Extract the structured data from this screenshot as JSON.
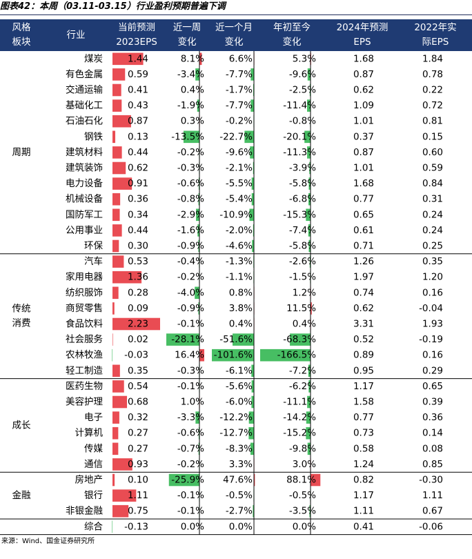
{
  "caption": "图表42：本周（03.11-03.15）行业盈利预期普遍下调",
  "source": "来源：Wind、国金证券研究所",
  "colors": {
    "header_bg": "#1f3b73",
    "header_text": "#ffffff",
    "positive_bar": "#e8424a",
    "negative_bar": "#3dbb5b",
    "divider": "#000000"
  },
  "headers": {
    "sector": [
      "风格",
      "板块"
    ],
    "industry": [
      "行业"
    ],
    "eps2023": [
      "当前预测",
      "2023EPS"
    ],
    "w1": [
      "近一周",
      "变化"
    ],
    "m1": [
      "近一个月",
      "变化"
    ],
    "ytd": [
      "年初至今",
      "变化"
    ],
    "eps2024": [
      "2024年预测",
      "EPS"
    ],
    "eps2022": [
      "2022年实",
      "际EPS"
    ]
  },
  "chart_data": {
    "type": "table",
    "title": "图表42：本周（03.11-03.15）行业盈利预期普遍下调",
    "columns": [
      "风格板块",
      "行业",
      "当前预测2023EPS",
      "近一周变化",
      "近一个月变化",
      "年初至今变化",
      "2024年预测EPS",
      "2022年实际EPS"
    ],
    "groups": [
      {
        "name": "周期",
        "label_lines": [
          "周期"
        ],
        "rows": [
          {
            "industry": "煤炭",
            "eps2023": "1.44",
            "w1": "8.1%",
            "m1": "6.6%",
            "ytd": "5.3%",
            "eps2024": "1.68",
            "eps2022": "1.84"
          },
          {
            "industry": "有色金属",
            "eps2023": "0.59",
            "w1": "-3.4%",
            "m1": "-7.7%",
            "ytd": "-9.6%",
            "eps2024": "0.87",
            "eps2022": "0.78"
          },
          {
            "industry": "交通运输",
            "eps2023": "0.41",
            "w1": "0.4%",
            "m1": "-1.7%",
            "ytd": "-2.5%",
            "eps2024": "0.62",
            "eps2022": "0.22"
          },
          {
            "industry": "基础化工",
            "eps2023": "0.43",
            "w1": "-1.9%",
            "m1": "-7.7%",
            "ytd": "-11.4%",
            "eps2024": "1.09",
            "eps2022": "0.72"
          },
          {
            "industry": "石油石化",
            "eps2023": "0.87",
            "w1": "0.3%",
            "m1": "-0.2%",
            "ytd": "-0.8%",
            "eps2024": "1.01",
            "eps2022": "0.81"
          },
          {
            "industry": "钢铁",
            "eps2023": "0.13",
            "w1": "-13.5%",
            "m1": "-22.7%",
            "ytd": "-20.1%",
            "eps2024": "0.37",
            "eps2022": "0.15"
          },
          {
            "industry": "建筑材料",
            "eps2023": "0.44",
            "w1": "-0.2%",
            "m1": "-9.6%",
            "ytd": "-11.3%",
            "eps2024": "0.87",
            "eps2022": "0.60"
          },
          {
            "industry": "建筑装饰",
            "eps2023": "0.62",
            "w1": "-0.3%",
            "m1": "-2.1%",
            "ytd": "-3.9%",
            "eps2024": "1.01",
            "eps2022": "0.59"
          },
          {
            "industry": "电力设备",
            "eps2023": "0.91",
            "w1": "-0.6%",
            "m1": "-5.5%",
            "ytd": "-5.8%",
            "eps2024": "1.68",
            "eps2022": "0.84"
          },
          {
            "industry": "机械设备",
            "eps2023": "0.36",
            "w1": "-0.8%",
            "m1": "-5.4%",
            "ytd": "-6.8%",
            "eps2024": "0.77",
            "eps2022": "0.31"
          },
          {
            "industry": "国防军工",
            "eps2023": "0.34",
            "w1": "-2.9%",
            "m1": "-10.9%",
            "ytd": "-15.3%",
            "eps2024": "0.65",
            "eps2022": "0.24"
          },
          {
            "industry": "公用事业",
            "eps2023": "0.44",
            "w1": "-1.6%",
            "m1": "-2.0%",
            "ytd": "-7.4%",
            "eps2024": "0.61",
            "eps2022": "0.24"
          },
          {
            "industry": "环保",
            "eps2023": "0.30",
            "w1": "-0.9%",
            "m1": "-4.6%",
            "ytd": "-5.8%",
            "eps2024": "0.71",
            "eps2022": "0.25"
          }
        ]
      },
      {
        "name": "传统消费",
        "label_lines": [
          "传统",
          "消费"
        ],
        "rows": [
          {
            "industry": "汽车",
            "eps2023": "0.53",
            "w1": "-0.4%",
            "m1": "-1.3%",
            "ytd": "-2.6%",
            "eps2024": "1.26",
            "eps2022": "0.35"
          },
          {
            "industry": "家用电器",
            "eps2023": "1.36",
            "w1": "-0.2%",
            "m1": "-1.1%",
            "ytd": "-1.5%",
            "eps2024": "1.97",
            "eps2022": "1.20"
          },
          {
            "industry": "纺织服饰",
            "eps2023": "0.28",
            "w1": "-4.0%",
            "m1": "0.8%",
            "ytd": "1.2%",
            "eps2024": "0.74",
            "eps2022": "0.16"
          },
          {
            "industry": "商贸零售",
            "eps2023": "0.09",
            "w1": "-0.9%",
            "m1": "3.8%",
            "ytd": "11.5%",
            "eps2024": "0.62",
            "eps2022": "-0.04"
          },
          {
            "industry": "食品饮料",
            "eps2023": "2.23",
            "w1": "-0.1%",
            "m1": "0.4%",
            "ytd": "0.4%",
            "eps2024": "3.31",
            "eps2022": "1.93"
          },
          {
            "industry": "社会服务",
            "eps2023": "0.02",
            "w1": "-28.1%",
            "m1": "-51.6%",
            "ytd": "-68.3%",
            "eps2024": "0.52",
            "eps2022": "-0.19"
          },
          {
            "industry": "农林牧渔",
            "eps2023": "-0.03",
            "w1": "16.4%",
            "m1": "-101.6%",
            "ytd": "-166.5%",
            "eps2024": "0.89",
            "eps2022": "0.16"
          },
          {
            "industry": "轻工制造",
            "eps2023": "0.35",
            "w1": "-0.3%",
            "m1": "-6.1%",
            "ytd": "-7.2%",
            "eps2024": "0.95",
            "eps2022": "0.29"
          }
        ]
      },
      {
        "name": "成长",
        "label_lines": [
          "成长"
        ],
        "rows": [
          {
            "industry": "医药生物",
            "eps2023": "0.54",
            "w1": "-0.1%",
            "m1": "-5.6%",
            "ytd": "-6.2%",
            "eps2024": "1.17",
            "eps2022": "0.65"
          },
          {
            "industry": "美容护理",
            "eps2023": "0.68",
            "w1": "1.0%",
            "m1": "-6.0%",
            "ytd": "-11.1%",
            "eps2024": "1.58",
            "eps2022": "0.39"
          },
          {
            "industry": "电子",
            "eps2023": "0.32",
            "w1": "-3.3%",
            "m1": "-12.2%",
            "ytd": "-14.2%",
            "eps2024": "0.77",
            "eps2022": "0.36"
          },
          {
            "industry": "计算机",
            "eps2023": "0.27",
            "w1": "-0.6%",
            "m1": "-12.7%",
            "ytd": "-15.2%",
            "eps2024": "0.73",
            "eps2022": "0.14"
          },
          {
            "industry": "传媒",
            "eps2023": "0.27",
            "w1": "-0.7%",
            "m1": "-8.3%",
            "ytd": "-9.8%",
            "eps2024": "0.58",
            "eps2022": "0.08"
          },
          {
            "industry": "通信",
            "eps2023": "0.93",
            "w1": "-0.2%",
            "m1": "3.3%",
            "ytd": "3.0%",
            "eps2024": "1.24",
            "eps2022": "0.85"
          }
        ]
      },
      {
        "name": "金融",
        "label_lines": [
          "金融"
        ],
        "rows": [
          {
            "industry": "房地产",
            "eps2023": "0.10",
            "w1": "-25.9%",
            "m1": "47.6%",
            "ytd": "88.1%",
            "eps2024": "0.82",
            "eps2022": "-0.30"
          },
          {
            "industry": "银行",
            "eps2023": "1.11",
            "w1": "-0.1%",
            "m1": "-0.5%",
            "ytd": "-0.5%",
            "eps2024": "1.17",
            "eps2022": "1.11"
          },
          {
            "industry": "非银金融",
            "eps2023": "0.75",
            "w1": "-0.1%",
            "m1": "-2.7%",
            "ytd": "-3.5%",
            "eps2024": "1.11",
            "eps2022": "0.67"
          }
        ]
      },
      {
        "name": "",
        "label_lines": [],
        "rows": [
          {
            "industry": "综合",
            "eps2023": "-0.13",
            "w1": "0.0%",
            "m1": "0.0%",
            "ytd": "0.0%",
            "eps2024": "0.41",
            "eps2022": "-0.06"
          }
        ]
      }
    ]
  }
}
